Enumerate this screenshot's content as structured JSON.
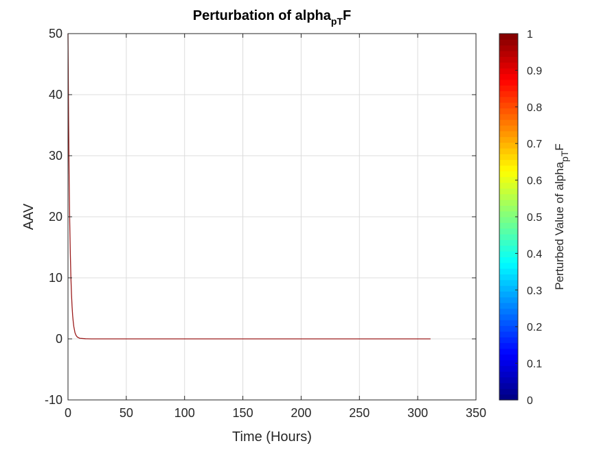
{
  "chart_data": {
    "type": "line",
    "title": {
      "main": "Perturbation of alpha",
      "subscript": "pT",
      "suffix": "F"
    },
    "xlabel": "Time (Hours)",
    "ylabel": "AAV",
    "xlim": [
      0,
      350
    ],
    "ylim": [
      -10,
      50
    ],
    "xticks": [
      0,
      50,
      100,
      150,
      200,
      250,
      300,
      350
    ],
    "yticks": [
      -10,
      0,
      10,
      20,
      30,
      40,
      50
    ],
    "grid": true,
    "series": [
      {
        "color": "#9b1b1b",
        "x": [
          0,
          0.5,
          1,
          1.5,
          2,
          2.5,
          3,
          3.5,
          4,
          4.5,
          5,
          6,
          7,
          8,
          10,
          15,
          20,
          50,
          100,
          150,
          200,
          250,
          300,
          311
        ],
        "y": [
          50,
          36,
          26,
          19,
          14,
          10,
          7.3,
          5.3,
          3.8,
          2.8,
          2.0,
          1.0,
          0.55,
          0.3,
          0.1,
          0.02,
          0,
          0,
          0,
          0,
          0,
          0,
          0,
          0
        ]
      }
    ],
    "colorbar": {
      "colormap": "jet",
      "range": [
        0,
        1
      ],
      "ticks": [
        0,
        0.1,
        0.2,
        0.3,
        0.4,
        0.5,
        0.6,
        0.7,
        0.8,
        0.9,
        1
      ],
      "tick_labels": [
        "0",
        "0.1",
        "0.2",
        "0.3",
        "0.4",
        "0.5",
        "0.6",
        "0.7",
        "0.8",
        "0.9",
        "1"
      ],
      "label": {
        "main": "Perturbed Value of alpha",
        "subscript": "pT",
        "suffix": "F"
      }
    }
  }
}
